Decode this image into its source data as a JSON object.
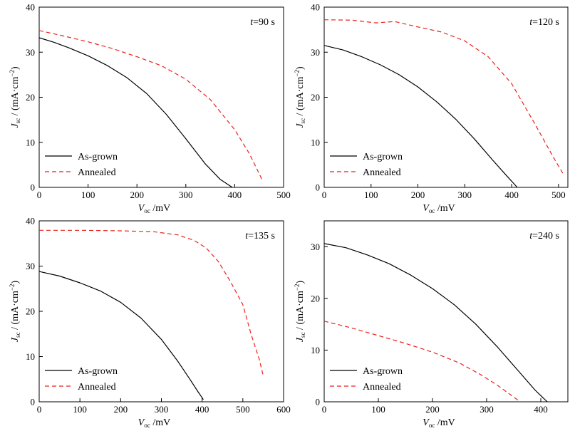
{
  "chart_data": [
    {
      "type": "line",
      "annotation_var": "t",
      "annotation_value": "=90 s",
      "xlabel_main": "V",
      "xlabel_sub": "oc",
      "xlabel_unit": " /mV",
      "ylabel_main": "J",
      "ylabel_sub": "sc",
      "ylabel_unit": " / (mA·cm",
      "ylabel_exp": "−2",
      "ylabel_close": ")",
      "xlim": [
        0,
        500
      ],
      "ylim": [
        0,
        40
      ],
      "xticks": [
        0,
        100,
        200,
        300,
        400,
        500
      ],
      "yticks": [
        0,
        10,
        20,
        30,
        40
      ],
      "legend_position": "bottom-left",
      "series": [
        {
          "name": "As-grown",
          "style": "solid",
          "color": "#000000",
          "x": [
            0,
            30,
            60,
            100,
            140,
            180,
            220,
            260,
            300,
            340,
            370,
            395
          ],
          "y": [
            33.2,
            32.2,
            31.0,
            29.2,
            27.0,
            24.3,
            20.8,
            16.2,
            10.8,
            5.2,
            1.8,
            0
          ]
        },
        {
          "name": "Annealed",
          "style": "dashed",
          "color": "#e8231c",
          "x": [
            0,
            50,
            100,
            150,
            200,
            250,
            300,
            350,
            400,
            430,
            457
          ],
          "y": [
            34.8,
            33.6,
            32.3,
            30.8,
            29.0,
            27.0,
            24.0,
            19.5,
            12.8,
            7.5,
            1.5
          ]
        }
      ]
    },
    {
      "type": "line",
      "annotation_var": "t",
      "annotation_value": "=120 s",
      "xlabel_main": "V",
      "xlabel_sub": "oc",
      "xlabel_unit": " /mV",
      "ylabel_main": "J",
      "ylabel_sub": "sc",
      "ylabel_unit": " / (mA·cm",
      "ylabel_exp": "−2",
      "ylabel_close": ")",
      "xlim": [
        0,
        520
      ],
      "ylim": [
        0,
        40
      ],
      "xticks": [
        0,
        100,
        200,
        300,
        400,
        500
      ],
      "yticks": [
        0,
        10,
        20,
        30,
        40
      ],
      "legend_position": "bottom-left",
      "series": [
        {
          "name": "As-grown",
          "style": "solid",
          "color": "#000000",
          "x": [
            0,
            40,
            80,
            120,
            160,
            200,
            240,
            280,
            320,
            360,
            390,
            412
          ],
          "y": [
            31.5,
            30.5,
            29.0,
            27.2,
            25.0,
            22.3,
            19.0,
            15.2,
            10.8,
            6.0,
            2.5,
            0
          ]
        },
        {
          "name": "Annealed",
          "style": "dashed",
          "color": "#e8231c",
          "x": [
            0,
            60,
            110,
            150,
            200,
            250,
            300,
            350,
            400,
            450,
            490,
            510
          ],
          "y": [
            37.2,
            37.1,
            36.5,
            36.8,
            35.6,
            34.5,
            32.5,
            29.0,
            23.0,
            14.0,
            6.5,
            3.0
          ]
        }
      ]
    },
    {
      "type": "line",
      "annotation_var": "t",
      "annotation_value": "=135 s",
      "xlabel_main": "V",
      "xlabel_sub": "oc",
      "xlabel_unit": " /mV",
      "ylabel_main": "J",
      "ylabel_sub": "sc",
      "ylabel_unit": " / (mA·cm",
      "ylabel_exp": "−2",
      "ylabel_close": ")",
      "xlim": [
        0,
        600
      ],
      "ylim": [
        0,
        40
      ],
      "xticks": [
        0,
        100,
        200,
        300,
        400,
        500,
        600
      ],
      "yticks": [
        0,
        10,
        20,
        30,
        40
      ],
      "legend_position": "bottom-left",
      "series": [
        {
          "name": "As-grown",
          "style": "solid",
          "color": "#000000",
          "x": [
            0,
            50,
            100,
            150,
            200,
            250,
            300,
            340,
            370,
            390,
            403
          ],
          "y": [
            28.8,
            27.8,
            26.3,
            24.5,
            22.0,
            18.5,
            13.8,
            9.0,
            5.0,
            2.2,
            0.5
          ]
        },
        {
          "name": "Annealed",
          "style": "dashed",
          "color": "#e8231c",
          "x": [
            0,
            100,
            200,
            280,
            340,
            380,
            410,
            440,
            470,
            500,
            520,
            540,
            550
          ],
          "y": [
            37.9,
            37.9,
            37.8,
            37.6,
            36.9,
            35.7,
            34.0,
            31.0,
            26.5,
            21.5,
            15.0,
            9.5,
            5.8
          ]
        }
      ]
    },
    {
      "type": "line",
      "annotation_var": "t",
      "annotation_value": "=240 s",
      "xlabel_main": "V",
      "xlabel_sub": "oc",
      "xlabel_unit": " /mV",
      "ylabel_main": "J",
      "ylabel_sub": "sc",
      "ylabel_unit": " / (mA·cm",
      "ylabel_exp": "−2",
      "ylabel_close": ")",
      "xlim": [
        0,
        450
      ],
      "ylim": [
        0,
        35
      ],
      "xticks": [
        0,
        100,
        200,
        300,
        400
      ],
      "yticks": [
        0,
        10,
        20,
        30
      ],
      "legend_position": "bottom-left",
      "series": [
        {
          "name": "As-grown",
          "style": "solid",
          "color": "#000000",
          "x": [
            0,
            40,
            80,
            120,
            160,
            200,
            240,
            280,
            320,
            360,
            390,
            412
          ],
          "y": [
            30.6,
            29.8,
            28.4,
            26.7,
            24.5,
            21.9,
            18.8,
            15.0,
            10.6,
            5.8,
            2.2,
            0
          ]
        },
        {
          "name": "Annealed",
          "style": "dashed",
          "color": "#e8231c",
          "x": [
            0,
            50,
            100,
            150,
            200,
            250,
            290,
            320,
            345,
            362
          ],
          "y": [
            15.6,
            14.3,
            12.8,
            11.3,
            9.6,
            7.5,
            5.2,
            3.2,
            1.3,
            0
          ]
        }
      ]
    }
  ]
}
